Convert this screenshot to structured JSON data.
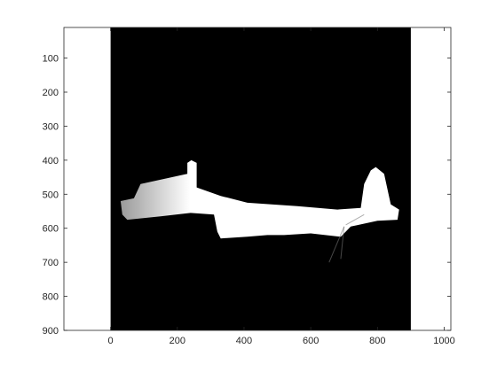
{
  "figure": {
    "background_color": "#ffffff"
  },
  "chart_data": {
    "type": "heatmap",
    "title": "",
    "xlabel": "",
    "ylabel": "",
    "xlim": [
      -140,
      1020
    ],
    "ylim": [
      900,
      10
    ],
    "y_direction": "reversed",
    "image_extent": {
      "x": [
        0,
        900
      ],
      "y": [
        10,
        900
      ]
    },
    "colormap": "gray",
    "x_ticks": [
      0,
      200,
      400,
      600,
      800,
      1000
    ],
    "x_tick_labels": [
      "0",
      "200",
      "400",
      "600",
      "800",
      "1000"
    ],
    "y_ticks": [
      100,
      200,
      300,
      400,
      500,
      600,
      700,
      800,
      900
    ],
    "y_tick_labels": [
      "100",
      "200",
      "300",
      "400",
      "500",
      "600",
      "700",
      "800",
      "900"
    ],
    "grid": false,
    "legend": "none",
    "colors": {
      "axis": "#262626",
      "image_background": "#000000",
      "map_free_space": "#ffffff",
      "map_gradient_dark": "#9a9a9a"
    },
    "image_content": "binary occupancy map: black background with white irregular corridor-shaped region",
    "map_outline_points": [
      [
        90,
        470
      ],
      [
        230,
        440
      ],
      [
        230,
        408
      ],
      [
        242,
        400
      ],
      [
        258,
        408
      ],
      [
        258,
        480
      ],
      [
        330,
        505
      ],
      [
        410,
        525
      ],
      [
        560,
        535
      ],
      [
        680,
        545
      ],
      [
        750,
        540
      ],
      [
        760,
        470
      ],
      [
        780,
        430
      ],
      [
        795,
        420
      ],
      [
        820,
        440
      ],
      [
        840,
        530
      ],
      [
        865,
        545
      ],
      [
        860,
        575
      ],
      [
        800,
        578
      ],
      [
        720,
        595
      ],
      [
        690,
        625
      ],
      [
        600,
        615
      ],
      [
        520,
        620
      ],
      [
        470,
        620
      ],
      [
        410,
        625
      ],
      [
        330,
        630
      ],
      [
        320,
        610
      ],
      [
        310,
        560
      ],
      [
        240,
        555
      ],
      [
        150,
        565
      ],
      [
        50,
        575
      ],
      [
        35,
        560
      ],
      [
        30,
        520
      ],
      [
        70,
        512
      ]
    ]
  }
}
